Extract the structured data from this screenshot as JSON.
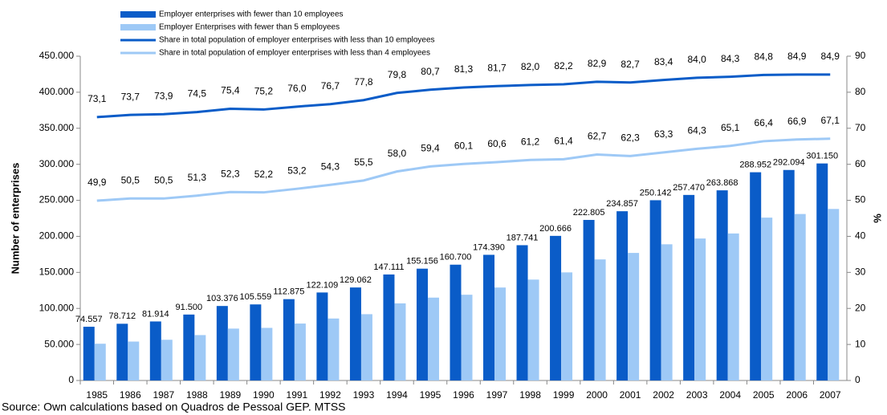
{
  "chart_data": {
    "type": "bar",
    "source": "Source: Own calculations based on Quadros de Pessoal GEP. MTSS",
    "y_label": "Number of enterprises",
    "y2_label": "%",
    "categories": [
      "1985",
      "1986",
      "1987",
      "1988",
      "1989",
      "1990",
      "1991",
      "1992",
      "1993",
      "1994",
      "1995",
      "1996",
      "1997",
      "1998",
      "1999",
      "2000",
      "2001",
      "2002",
      "2003",
      "2004",
      "2005",
      "2006",
      "2007"
    ],
    "series": [
      {
        "name": "Employer enterprises with fewer than 10 employees",
        "type": "bar",
        "color": "#0a5cc8",
        "values": [
          74557,
          78712,
          81914,
          91500,
          103376,
          105559,
          112875,
          122109,
          129062,
          147111,
          155156,
          160700,
          174390,
          187741,
          200666,
          222805,
          234857,
          250142,
          257470,
          263868,
          288952,
          292094,
          301150
        ],
        "value_labels": [
          "74.557",
          "78.712",
          "81.914",
          "91.500",
          "103.376",
          "105.559",
          "112.875",
          "122.109",
          "129.062",
          "147.111",
          "155.156",
          "160.700",
          "174.390",
          "187.741",
          "200.666",
          "222.805",
          "234.857",
          "250.142",
          "257.470",
          "263.868",
          "288.952",
          "292.094",
          "301.150"
        ]
      },
      {
        "name": "Employer Enterprises with fewer than 5 employees",
        "type": "bar",
        "color": "#9ec9f6",
        "values": [
          51000,
          54000,
          56500,
          63000,
          72000,
          73000,
          79000,
          86000,
          92000,
          107000,
          115000,
          119000,
          129000,
          140000,
          150000,
          168000,
          177000,
          189000,
          197000,
          204000,
          226000,
          231000,
          238000
        ]
      },
      {
        "name": "Share in total population of employer enterprises with less than 10 employees",
        "type": "line",
        "axis": "y2",
        "color": "#0a5cc8",
        "values": [
          73.1,
          73.7,
          73.9,
          74.5,
          75.4,
          75.2,
          76.0,
          76.7,
          77.8,
          79.8,
          80.7,
          81.3,
          81.7,
          82.0,
          82.2,
          82.9,
          82.7,
          83.4,
          84.0,
          84.3,
          84.8,
          84.9,
          84.9
        ],
        "value_labels": [
          "73,1",
          "73,7",
          "73,9",
          "74,5",
          "75,4",
          "75,2",
          "76,0",
          "76,7",
          "77,8",
          "79,8",
          "80,7",
          "81,3",
          "81,7",
          "82,0",
          "82,2",
          "82,9",
          "82,7",
          "83,4",
          "84,0",
          "84,3",
          "84,8",
          "84,9",
          "84,9"
        ]
      },
      {
        "name": "Share in total population of employer enterprises with less than 4 employees",
        "type": "line",
        "axis": "y2",
        "color": "#9ec9f6",
        "values": [
          49.9,
          50.5,
          50.5,
          51.3,
          52.3,
          52.2,
          53.2,
          54.3,
          55.5,
          58.0,
          59.4,
          60.1,
          60.6,
          61.2,
          61.4,
          62.7,
          62.3,
          63.3,
          64.3,
          65.1,
          66.4,
          66.9,
          67.1
        ],
        "value_labels": [
          "49,9",
          "50,5",
          "50,5",
          "51,3",
          "52,3",
          "52,2",
          "53,2",
          "54,3",
          "55,5",
          "58,0",
          "59,4",
          "60,1",
          "60,6",
          "61,2",
          "61,4",
          "62,7",
          "62,3",
          "63,3",
          "64,3",
          "65,1",
          "66,4",
          "66,9",
          "67,1"
        ]
      }
    ],
    "ylim": [
      0,
      450000
    ],
    "yticks": [
      0,
      {
        "value": 50000,
        "label": "50.000"
      },
      {
        "value": 100000,
        "label": "100.000"
      },
      {
        "value": 150000,
        "label": "150.000"
      },
      {
        "value": 200000,
        "label": "200.000"
      },
      {
        "value": 250000,
        "label": "250.000"
      },
      {
        "value": 300000,
        "label": "300.000"
      },
      {
        "value": 350000,
        "label": "350.000"
      },
      {
        "value": 400000,
        "label": "400.000"
      },
      {
        "value": 450000,
        "label": "450.000"
      }
    ],
    "y2lim": [
      0,
      90
    ],
    "y2ticks": [
      0,
      10,
      20,
      30,
      40,
      50,
      60,
      70,
      80,
      90
    ],
    "grid": false,
    "legend": "top-left"
  }
}
